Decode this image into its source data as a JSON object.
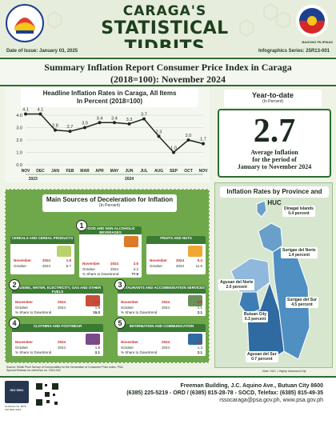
{
  "header": {
    "brand_line1": "CARAGA'S",
    "brand_line2": "STATISTICAL TIDBITS",
    "flag_label": "BAGONG PILIPINAS",
    "issue_date": "Date of Issue: January 03, 2025",
    "series": "Infographics Series: 25R13-001"
  },
  "title": {
    "line1": "Summary Inflation Report Consumer Price Index in Caraga",
    "line2": "(2018=100): November 2024"
  },
  "headline_chart": {
    "heading_line1": "Headline Inflation Rates in Caraga, All Items",
    "heading_line2": "In Percent (2018=100)"
  },
  "chart_data": {
    "type": "line",
    "categories": [
      "NOV",
      "DEC",
      "JAN",
      "FEB",
      "MAR",
      "APR",
      "MAY",
      "JUN",
      "JUL",
      "AUG",
      "SEP",
      "OCT",
      "NOV"
    ],
    "values": [
      4.1,
      4.1,
      2.8,
      2.7,
      3.0,
      3.4,
      3.4,
      3.3,
      3.7,
      2.3,
      1.0,
      2.0,
      1.7
    ],
    "year_labels": [
      "2023",
      "2024"
    ],
    "ylim": [
      0.0,
      4.0
    ],
    "yticks": [
      "4.0",
      "3.0",
      "2.0",
      "1.0",
      "0.0"
    ],
    "colors": {
      "line": "#1c2a1c",
      "accent": "#2f6b2f"
    }
  },
  "ytd": {
    "heading": "Year-to-date",
    "subheading": "(In Percent)",
    "value": "2.7",
    "caption_line1": "Average Inflation",
    "caption_line2": "for the period of",
    "caption_line3": "January to November 2024"
  },
  "deflation": {
    "heading": "Main Sources of  Deceleration for Inflation",
    "subheading": "(In Percent)",
    "cards": [
      {
        "num": "",
        "title": "CEREALS AND CEREAL PRODUCTS",
        "nov_label": "November",
        "year": "2024",
        "nov_val": "1.9",
        "oct_label": "October",
        "oct_year": "2024",
        "oct_val": "5.7",
        "share_label": "",
        "share_val": ""
      },
      {
        "num": "1",
        "title": "FOOD AND NON-ALCOHOLIC BEVERAGES",
        "nov_label": "November",
        "year": "2024",
        "nov_val": "2.6",
        "oct_label": "October",
        "oct_year": "2024",
        "oct_val": "3.2",
        "share_label": "% Share to Downtrend",
        "share_val": "77.9"
      },
      {
        "num": "",
        "title": "FRUITS AND NUTS",
        "nov_label": "November",
        "year": "2024",
        "nov_val": "5.4",
        "oct_label": "October",
        "oct_year": "2024",
        "oct_val": "11.5",
        "share_label": "",
        "share_val": ""
      },
      {
        "num": "2",
        "title": "HOUSING, WATER, ELECTRICITY, GAS AND OTHER FUELS",
        "nov_label": "November",
        "year": "2024",
        "nov_val": "1.4",
        "oct_label": "October",
        "oct_year": "2024",
        "oct_val": "1.9",
        "share_label": "% Share to Downtrend",
        "share_val": "15.0"
      },
      {
        "num": "3",
        "title": "RESTAURANTS AND ACCOMMODATION SERVICES",
        "nov_label": "November",
        "year": "2024",
        "nov_val": "0.9",
        "oct_label": "October",
        "oct_year": "2024",
        "oct_val": "1.1",
        "share_label": "% Share to Downtrend",
        "share_val": "2.1"
      },
      {
        "num": "4",
        "title": "CLOTHING AND FOOTWEAR",
        "nov_label": "November",
        "year": "2024",
        "nov_val": "1.7",
        "oct_label": "October",
        "oct_year": "2024",
        "oct_val": "1.9",
        "share_label": "% Share to Downtrend",
        "share_val": "2.1"
      },
      {
        "num": "5",
        "title": "INFORMATION AND COMMUNICATION",
        "nov_label": "November",
        "year": "2024",
        "nov_val": "1.1",
        "oct_label": "October",
        "oct_year": "2024",
        "oct_val": "1.3",
        "share_label": "% Share to Downtrend",
        "share_val": "2.1"
      }
    ],
    "source": "Source: Retail Price Survey of Commodities for the Generation of Consumer Price Index, PSA",
    "source2": "Special Release for reference no. 2024-022"
  },
  "map": {
    "heading": "Inflation Rates by Province and HUC",
    "provinces": [
      {
        "name": "Dinagat Islands",
        "value": "0.4 percent"
      },
      {
        "name": "Surigao del Norte",
        "value": "1.4 percent"
      },
      {
        "name": "Agusan del Norte",
        "value": "2.0 percent"
      },
      {
        "name": "Butuan City",
        "value": "0.3 percent"
      },
      {
        "name": "Surigao del Sur",
        "value": "4.5 percent"
      },
      {
        "name": "Agusan del Sur",
        "value": "0.7 percent"
      }
    ],
    "note": "Note: HUC = Highly Urbanized City"
  },
  "footer": {
    "address": "Freeman Building, J.C. Aquino Ave., Butuan City 8600",
    "phones": "(6385) 225-5219 - ORD / (6385) 815-28-78 - SOCD, Telefax: (6385) 815-49-35",
    "emails": "rssocaraga@psa.gov.ph, www.psa.gov.ph",
    "cert": "Certificate No. 8679 ISO 9001:2015",
    "logo_text": "ISO 9001"
  }
}
